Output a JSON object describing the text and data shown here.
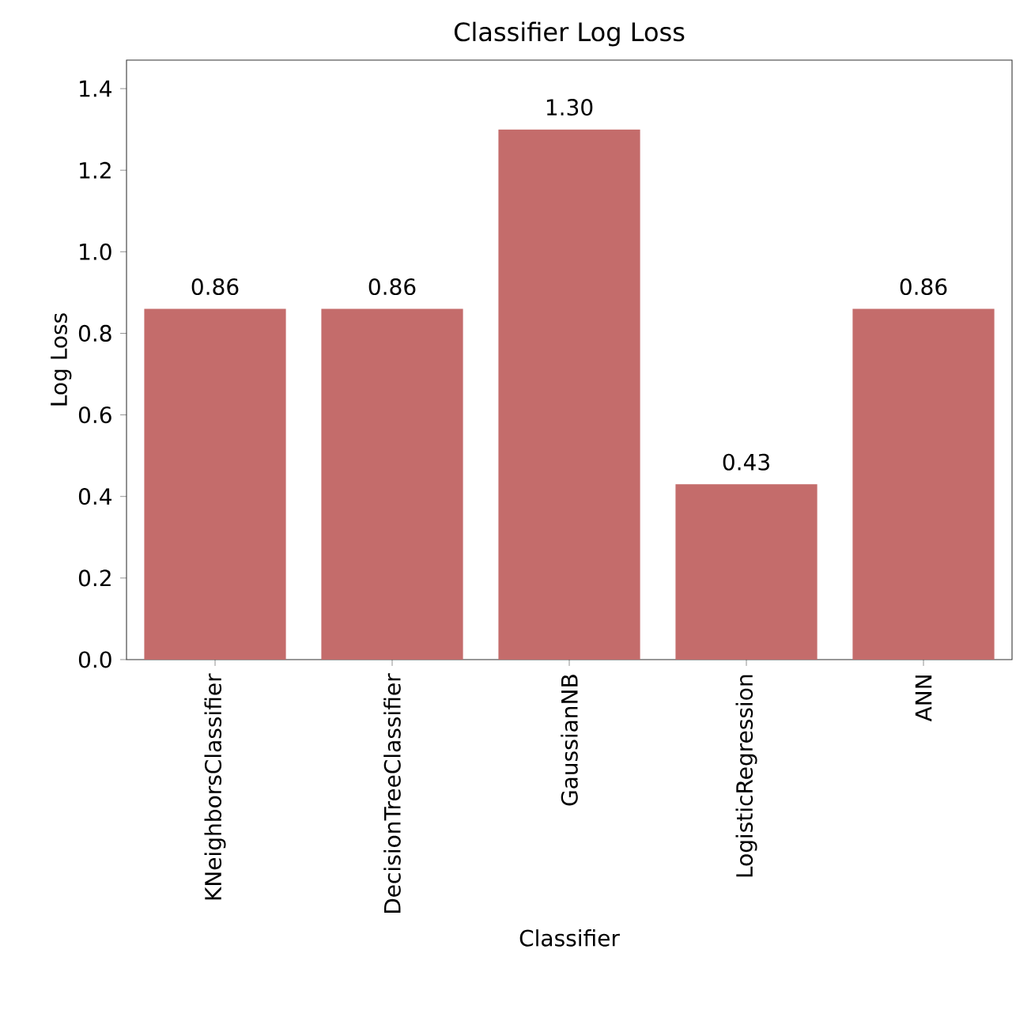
{
  "chart_data": {
    "type": "bar",
    "title": "Classifier Log Loss",
    "xlabel": "Classifier",
    "ylabel": "Log Loss",
    "categories": [
      "KNeighborsClassifier",
      "DecisionTreeClassifier",
      "GaussianNB",
      "LogisticRegression",
      "ANN"
    ],
    "values": [
      0.86,
      0.86,
      1.3,
      0.43,
      0.86
    ],
    "value_labels": [
      "0.86",
      "0.86",
      "1.30",
      "0.43",
      "0.86"
    ],
    "color": "#c46c6b",
    "ylim": [
      0,
      1.47
    ],
    "yticks": [
      {
        "value": 0,
        "label": "0.0"
      },
      0.2,
      0.4,
      0.6,
      0.8,
      {
        "value": 1.0,
        "label": "1.0"
      },
      1.2,
      1.4
    ],
    "grid": false
  }
}
